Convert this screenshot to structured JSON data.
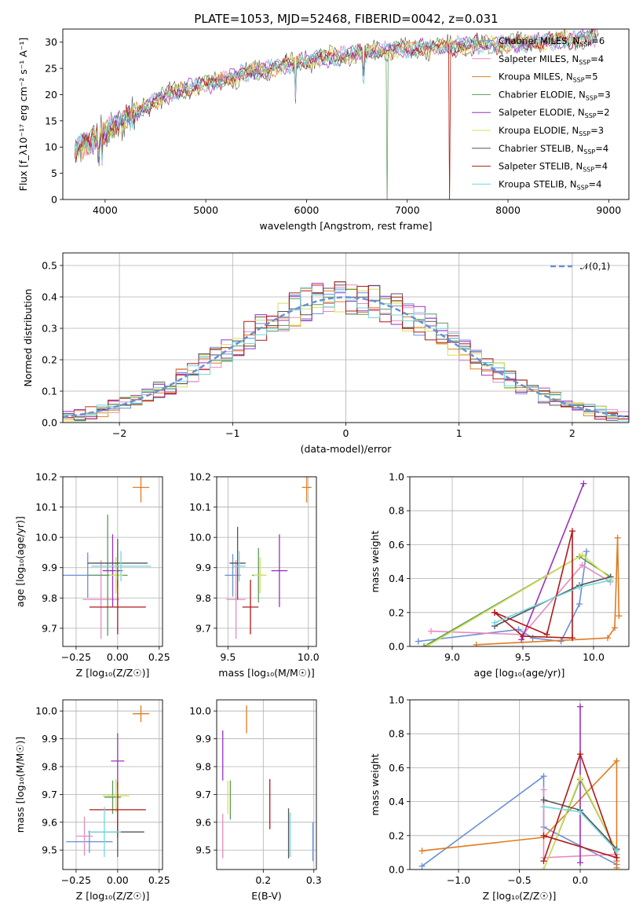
{
  "title": "PLATE=1053, MJD=52468, FIBERID=0042, z=0.031",
  "models": [
    {
      "name": "Chabrier MILES",
      "nssp": "6",
      "color": "#6a8fd6"
    },
    {
      "name": "Salpeter MILES",
      "nssp": "4",
      "color": "#e88bbf"
    },
    {
      "name": "Kroupa MILES",
      "nssp": "5",
      "color": "#e07b20"
    },
    {
      "name": "Chabrier ELODIE",
      "nssp": "3",
      "color": "#5a9a5a"
    },
    {
      "name": "Salpeter ELODIE",
      "nssp": "2",
      "color": "#9b30c0"
    },
    {
      "name": "Kroupa ELODIE",
      "nssp": "3",
      "color": "#d6e05a"
    },
    {
      "name": "Chabrier STELIB",
      "nssp": "4",
      "color": "#555555"
    },
    {
      "name": "Salpeter STELIB",
      "nssp": "4",
      "color": "#b01818"
    },
    {
      "name": "Kroupa STELIB",
      "nssp": "4",
      "color": "#6fd8e0"
    }
  ],
  "chart_data": [
    {
      "id": "spectrum",
      "type": "line",
      "xlabel": "wavelength [Angstrom, rest frame]",
      "ylabel": "Flux [f_λ10⁻¹⁷ erg cm⁻² s⁻¹ A⁻¹]",
      "xlim": [
        3580,
        9200
      ],
      "ylim": [
        0,
        32.5
      ],
      "xticks": [
        4000,
        5000,
        6000,
        7000,
        8000,
        9000
      ],
      "yticks": [
        0,
        5,
        10,
        15,
        20,
        25,
        30
      ],
      "legend_position": "top-right",
      "trend_x": [
        3700,
        3900,
        4100,
        4300,
        4500,
        4700,
        4900,
        5100,
        5300,
        5500,
        5700,
        5900,
        6100,
        6300,
        6500,
        6700,
        6900,
        7100,
        7300,
        7500,
        7700,
        7900,
        8100,
        8300,
        8500,
        8700,
        8900
      ],
      "trend_y": [
        9.5,
        11.5,
        14,
        16.5,
        19,
        20.5,
        21.5,
        22.5,
        23.5,
        24.5,
        25.3,
        26,
        26.8,
        27.3,
        27.8,
        28.2,
        28.6,
        28.8,
        29,
        29.3,
        29.5,
        29.6,
        29.8,
        30,
        30.3,
        30.6,
        31
      ]
    },
    {
      "id": "residuals",
      "type": "histogram",
      "xlabel": "(data-model)/error",
      "ylabel": "Normed distribution",
      "xlim": [
        -2.5,
        2.5
      ],
      "ylim": [
        0,
        0.54
      ],
      "xticks": [
        -2,
        -1,
        0,
        1,
        2
      ],
      "yticks": [
        0.0,
        0.1,
        0.2,
        0.3,
        0.4,
        0.5
      ],
      "bin_width": 0.1,
      "overlay_label": "𝒩(0,1)",
      "overlay_mean": 0,
      "overlay_sigma": 1
    },
    {
      "id": "age_vs_Z",
      "type": "errorbar",
      "xlabel": "Z [log₁₀(Z/Z☉)]",
      "ylabel": "age  [log₁₀(age/yr)]",
      "xlim": [
        -0.33,
        0.27
      ],
      "ylim": [
        9.64,
        10.2
      ],
      "xticks": [
        -0.25,
        0.0,
        0.25
      ],
      "yticks": [
        9.7,
        9.8,
        9.9,
        10.0,
        10.1,
        10.2
      ],
      "points": [
        {
          "m": 0,
          "x": -0.18,
          "y": 9.875,
          "xerr": 0.15,
          "yerr": 0.075
        },
        {
          "m": 1,
          "x": -0.1,
          "y": 9.795,
          "xerr": 0.11,
          "yerr": 0.13
        },
        {
          "m": 2,
          "x": 0.14,
          "y": 10.165,
          "xerr": 0.05,
          "yerr": 0.05
        },
        {
          "m": 3,
          "x": -0.06,
          "y": 9.875,
          "xerr": 0.12,
          "yerr": 0.2
        },
        {
          "m": 4,
          "x": -0.03,
          "y": 9.89,
          "xerr": 0.06,
          "yerr": 0.12
        },
        {
          "m": 5,
          "x": -0.01,
          "y": 9.875,
          "xerr": 0.04,
          "yerr": 0.06
        },
        {
          "m": 6,
          "x": 0.0,
          "y": 9.915,
          "xerr": 0.18,
          "yerr": 0.08
        },
        {
          "m": 7,
          "x": 0.0,
          "y": 9.77,
          "xerr": 0.17,
          "yerr": 0.09
        },
        {
          "m": 8,
          "x": 0.02,
          "y": 9.905,
          "xerr": 0.18,
          "yerr": 0.05
        }
      ]
    },
    {
      "id": "age_vs_mass",
      "type": "errorbar",
      "xlabel": "mass [log₁₀(M/M☉)]",
      "ylabel": "",
      "xlim": [
        9.43,
        10.05
      ],
      "ylim": [
        9.64,
        10.2
      ],
      "xticks": [
        9.5,
        10.0
      ],
      "yticks": [
        9.7,
        9.8,
        9.9,
        10.0,
        10.1,
        10.2
      ],
      "points": [
        {
          "m": 0,
          "x": 9.53,
          "y": 9.875,
          "xerr": 0.05,
          "yerr": 0.07
        },
        {
          "m": 1,
          "x": 9.55,
          "y": 9.795,
          "xerr": 0.06,
          "yerr": 0.13
        },
        {
          "m": 2,
          "x": 9.99,
          "y": 10.165,
          "xerr": 0.03,
          "yerr": 0.05
        },
        {
          "m": 3,
          "x": 9.69,
          "y": 9.875,
          "xerr": 0.04,
          "yerr": 0.09
        },
        {
          "m": 4,
          "x": 9.82,
          "y": 9.89,
          "xerr": 0.05,
          "yerr": 0.12
        },
        {
          "m": 5,
          "x": 9.7,
          "y": 9.875,
          "xerr": 0.04,
          "yerr": 0.06
        },
        {
          "m": 6,
          "x": 9.56,
          "y": 9.915,
          "xerr": 0.05,
          "yerr": 0.12
        },
        {
          "m": 7,
          "x": 9.64,
          "y": 9.77,
          "xerr": 0.05,
          "yerr": 0.09
        },
        {
          "m": 8,
          "x": 9.57,
          "y": 9.905,
          "xerr": 0.04,
          "yerr": 0.05
        }
      ]
    },
    {
      "id": "weight_vs_age",
      "type": "line",
      "xlabel": "age  [log₁₀(age/yr)]",
      "ylabel": "mass weight",
      "xlim": [
        8.7,
        10.25
      ],
      "ylim": [
        0,
        1.0
      ],
      "xticks": [
        9.0,
        9.5,
        10.0
      ],
      "yticks": [
        0.0,
        0.2,
        0.4,
        0.6,
        0.8,
        1.0
      ],
      "series": [
        {
          "m": 0,
          "x": [
            8.76,
            9.47,
            9.57,
            9.77,
            9.9,
            9.95
          ],
          "y": [
            0.03,
            0.1,
            0.05,
            0.03,
            0.25,
            0.56
          ]
        },
        {
          "m": 1,
          "x": [
            8.85,
            9.5,
            9.92,
            10.12
          ],
          "y": [
            0.09,
            0.07,
            0.48,
            0.38
          ]
        },
        {
          "m": 2,
          "x": [
            9.17,
            10.1,
            10.15,
            10.17,
            10.18
          ],
          "y": [
            0.01,
            0.05,
            0.11,
            0.64,
            0.18
          ]
        },
        {
          "m": 3,
          "x": [
            8.8,
            9.9,
            10.12
          ],
          "y": [
            0.0,
            0.53,
            0.41
          ]
        },
        {
          "m": 4,
          "x": [
            9.49,
            9.93
          ],
          "y": [
            0.04,
            0.96
          ]
        },
        {
          "m": 5,
          "x": [
            8.82,
            9.92,
            10.12
          ],
          "y": [
            0.0,
            0.54,
            0.4
          ]
        },
        {
          "m": 6,
          "x": [
            9.3,
            9.9,
            10.12
          ],
          "y": [
            0.12,
            0.36,
            0.41
          ]
        },
        {
          "m": 7,
          "x": [
            9.3,
            9.67,
            9.85,
            9.85,
            9.5,
            9.3
          ],
          "y": [
            0.2,
            0.07,
            0.68,
            0.05,
            0.06,
            0.2
          ]
        },
        {
          "m": 8,
          "x": [
            9.3,
            9.9,
            10.12
          ],
          "y": [
            0.14,
            0.35,
            0.39
          ]
        }
      ]
    },
    {
      "id": "mass_vs_Z",
      "type": "errorbar",
      "xlabel": "Z [log₁₀(Z/Z☉)]",
      "ylabel": "mass [log₁₀(M/M☉)]",
      "xlim": [
        -0.33,
        0.27
      ],
      "ylim": [
        9.43,
        10.04
      ],
      "xticks": [
        -0.25,
        0.0,
        0.25
      ],
      "yticks": [
        9.5,
        9.6,
        9.7,
        9.8,
        9.9,
        10.0
      ],
      "points": [
        {
          "m": 0,
          "x": -0.17,
          "y": 9.53,
          "xerr": 0.14,
          "yerr": 0.04
        },
        {
          "m": 1,
          "x": -0.2,
          "y": 9.55,
          "xerr": 0.05,
          "yerr": 0.07
        },
        {
          "m": 2,
          "x": 0.14,
          "y": 9.99,
          "xerr": 0.05,
          "yerr": 0.03
        },
        {
          "m": 3,
          "x": -0.03,
          "y": 9.69,
          "xerr": 0.05,
          "yerr": 0.06
        },
        {
          "m": 4,
          "x": 0.0,
          "y": 9.82,
          "xerr": 0.04,
          "yerr": 0.1
        },
        {
          "m": 5,
          "x": -0.01,
          "y": 9.695,
          "xerr": 0.08,
          "yerr": 0.06
        },
        {
          "m": 6,
          "x": 0.0,
          "y": 9.565,
          "xerr": 0.16,
          "yerr": 0.09
        },
        {
          "m": 7,
          "x": 0.0,
          "y": 9.645,
          "xerr": 0.17,
          "yerr": 0.1
        },
        {
          "m": 8,
          "x": -0.08,
          "y": 9.565,
          "xerr": 0.1,
          "yerr": 0.09
        }
      ]
    },
    {
      "id": "mass_vs_EBV",
      "type": "errorbar",
      "xlabel": "E(B-V)",
      "ylabel": "",
      "xlim": [
        0.108,
        0.305
      ],
      "ylim": [
        9.43,
        10.04
      ],
      "xticks": [
        0.2,
        0.3
      ],
      "yticks": [
        9.5,
        9.6,
        9.7,
        9.8,
        9.9,
        10.0
      ],
      "points": [
        {
          "m": 0,
          "x": 0.298,
          "y": 9.53,
          "xerr": 0.0,
          "yerr": 0.07
        },
        {
          "m": 1,
          "x": 0.12,
          "y": 9.55,
          "xerr": 0.0,
          "yerr": 0.08
        },
        {
          "m": 2,
          "x": 0.167,
          "y": 9.97,
          "xerr": 0.0,
          "yerr": 0.05
        },
        {
          "m": 3,
          "x": 0.135,
          "y": 9.68,
          "xerr": 0.0,
          "yerr": 0.07
        },
        {
          "m": 4,
          "x": 0.12,
          "y": 9.84,
          "xerr": 0.0,
          "yerr": 0.09
        },
        {
          "m": 5,
          "x": 0.13,
          "y": 9.69,
          "xerr": 0.0,
          "yerr": 0.06
        },
        {
          "m": 6,
          "x": 0.25,
          "y": 9.56,
          "xerr": 0.0,
          "yerr": 0.09
        },
        {
          "m": 7,
          "x": 0.213,
          "y": 9.665,
          "xerr": 0.0,
          "yerr": 0.09
        },
        {
          "m": 8,
          "x": 0.253,
          "y": 9.555,
          "xerr": 0.0,
          "yerr": 0.08
        }
      ]
    },
    {
      "id": "weight_vs_Z",
      "type": "line",
      "xlabel": "Z [log₁₀(Z/Z☉)]",
      "ylabel": "mass weight",
      "xlim": [
        -1.4,
        0.4
      ],
      "ylim": [
        0,
        1.0
      ],
      "xticks": [
        -1.0,
        -0.5,
        0.0
      ],
      "yticks": [
        0.0,
        0.2,
        0.4,
        0.6,
        0.8,
        1.0
      ],
      "series": [
        {
          "m": 0,
          "x": [
            -1.3,
            -0.3,
            -0.3,
            0.3
          ],
          "y": [
            0.02,
            0.55,
            0.25,
            0.03
          ]
        },
        {
          "m": 1,
          "x": [
            -0.3,
            -0.3,
            0.3
          ],
          "y": [
            0.47,
            0.07,
            0.09
          ]
        },
        {
          "m": 2,
          "x": [
            -1.3,
            -0.3,
            0.3,
            0.3,
            0.3
          ],
          "y": [
            0.11,
            0.19,
            0.64,
            0.01,
            0.05
          ]
        },
        {
          "m": 3,
          "x": [
            -0.3,
            0.0,
            0.3
          ],
          "y": [
            0.0,
            0.53,
            0.11
          ]
        },
        {
          "m": 4,
          "x": [
            0.0,
            0.0
          ],
          "y": [
            0.96,
            0.04
          ]
        },
        {
          "m": 5,
          "x": [
            -0.3,
            0.0,
            0.3
          ],
          "y": [
            0.0,
            0.54,
            0.11
          ]
        },
        {
          "m": 6,
          "x": [
            -0.3,
            0.0,
            0.3
          ],
          "y": [
            0.41,
            0.35,
            0.12
          ]
        },
        {
          "m": 7,
          "x": [
            -0.3,
            0.0,
            0.3,
            -0.3
          ],
          "y": [
            0.05,
            0.68,
            0.07,
            0.2
          ]
        },
        {
          "m": 8,
          "x": [
            -0.3,
            0.0,
            0.3
          ],
          "y": [
            0.37,
            0.34,
            0.11
          ]
        }
      ]
    }
  ]
}
